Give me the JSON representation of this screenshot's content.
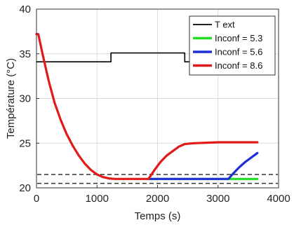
{
  "chart_data": {
    "type": "line",
    "xlabel": "Temps (s)",
    "ylabel": "Température (°C)",
    "xlim": [
      0,
      4000
    ],
    "ylim": [
      20,
      40
    ],
    "xticks": [
      0,
      1000,
      2000,
      3000,
      4000
    ],
    "yticks": [
      20,
      25,
      30,
      35,
      40
    ],
    "grid": true,
    "legend_position": "top-right",
    "series": [
      {
        "name": "T ext",
        "color": "#000000",
        "points": [
          [
            0,
            34.1
          ],
          [
            1230,
            34.1
          ],
          [
            1230,
            35.1
          ],
          [
            2450,
            35.1
          ],
          [
            2450,
            34.1
          ],
          [
            3650,
            34.1
          ]
        ]
      },
      {
        "name": "Inconf = 5.3",
        "color": "#22dd22",
        "points": [
          [
            1850,
            21.0
          ],
          [
            3650,
            21.0
          ]
        ]
      },
      {
        "name": "Inconf = 5.6",
        "color": "#1f2fd6",
        "points": [
          [
            1850,
            21.0
          ],
          [
            3170,
            21.0
          ],
          [
            3250,
            21.6
          ],
          [
            3350,
            22.3
          ],
          [
            3450,
            22.9
          ],
          [
            3550,
            23.4
          ],
          [
            3650,
            23.9
          ]
        ]
      },
      {
        "name": "Inconf = 8.6",
        "color": "#e01919",
        "points": [
          [
            0,
            37.2
          ],
          [
            30,
            37.2
          ],
          [
            100,
            35.0
          ],
          [
            200,
            32.0
          ],
          [
            300,
            29.5
          ],
          [
            400,
            27.6
          ],
          [
            500,
            26.0
          ],
          [
            600,
            24.7
          ],
          [
            700,
            23.6
          ],
          [
            800,
            22.7
          ],
          [
            900,
            22.0
          ],
          [
            1000,
            21.5
          ],
          [
            1100,
            21.2
          ],
          [
            1200,
            21.05
          ],
          [
            1300,
            21.0
          ],
          [
            1850,
            21.0
          ],
          [
            1950,
            22.0
          ],
          [
            2050,
            22.9
          ],
          [
            2150,
            23.6
          ],
          [
            2250,
            24.1
          ],
          [
            2350,
            24.6
          ],
          [
            2450,
            24.9
          ],
          [
            2600,
            25.0
          ],
          [
            3000,
            25.1
          ],
          [
            3650,
            25.1
          ]
        ]
      }
    ],
    "reference_lines": [
      {
        "style": "dashed",
        "color": "#333333",
        "y": 21.5
      },
      {
        "style": "dashed",
        "color": "#333333",
        "y": 20.5
      }
    ]
  }
}
